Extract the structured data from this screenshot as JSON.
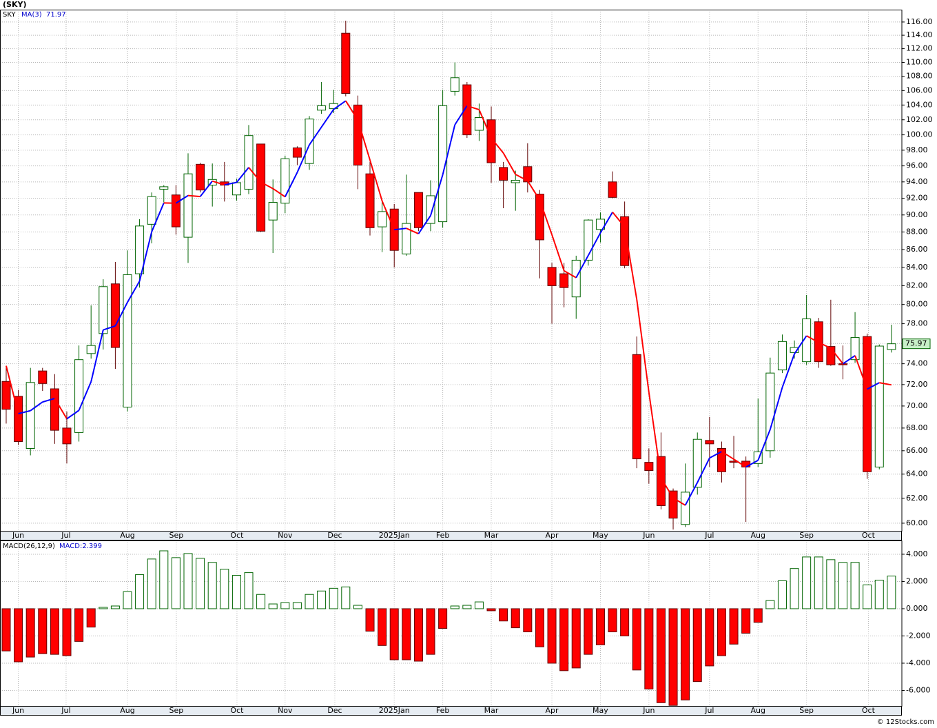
{
  "chart_data": [
    {
      "type": "candlestick",
      "title": "(SKY)",
      "name": "SKY",
      "log_scale": true,
      "grid": true,
      "up_color": "#006400",
      "down_color": "#ff0000",
      "open": [
        72.3,
        70.9,
        66.2,
        73.3,
        71.6,
        68.0,
        67.6,
        75.0,
        77.0,
        82.2,
        69.9,
        83.3,
        88.9,
        93.1,
        92.4,
        87.4,
        96.2,
        93.6,
        94.0,
        92.4,
        93.1,
        98.8,
        89.4,
        91.4,
        98.3,
        96.3,
        103.3,
        103.5,
        114.3,
        104.0,
        95.0,
        88.6,
        90.7,
        85.5,
        92.7,
        89.0,
        89.2,
        105.9,
        106.8,
        100.6,
        102.0,
        95.8,
        93.9,
        95.9,
        92.5,
        84.0,
        83.3,
        80.8,
        84.8,
        88.3,
        94.0,
        89.8,
        74.9,
        65.0,
        65.5,
        62.6,
        59.9,
        62.9,
        66.9,
        66.2,
        65.1,
        65.1,
        64.9,
        66.0,
        73.4,
        75.1,
        74.2,
        78.2,
        75.7,
        74.0,
        74.4,
        76.7,
        64.6,
        75.4
      ],
      "high": [
        73.8,
        71.5,
        73.6,
        73.6,
        73.0,
        69.5,
        75.8,
        79.9,
        82.7,
        84.6,
        85.9,
        89.5,
        92.7,
        93.6,
        93.6,
        97.6,
        96.4,
        96.3,
        96.5,
        94.4,
        101.3,
        98.8,
        94.3,
        97.3,
        98.5,
        102.5,
        107.2,
        106.1,
        116.2,
        105.3,
        96.5,
        91.6,
        91.3,
        94.9,
        92.7,
        94.2,
        106.1,
        110.0,
        107.2,
        104.2,
        103.8,
        96.5,
        95.4,
        98.9,
        93.0,
        84.5,
        84.5,
        85.3,
        89.5,
        90.3,
        95.3,
        91.6,
        76.7,
        66.2,
        67.6,
        62.8,
        64.9,
        67.6,
        69.0,
        66.8,
        67.3,
        65.5,
        70.7,
        74.6,
        76.9,
        76.3,
        81.0,
        78.6,
        80.5,
        75.8,
        79.2,
        77.0,
        75.9,
        77.9
      ],
      "low": [
        68.4,
        66.5,
        65.6,
        71.4,
        66.6,
        64.9,
        66.8,
        74.5,
        75.4,
        73.5,
        69.5,
        81.8,
        86.7,
        91.5,
        87.7,
        84.5,
        92.7,
        91.0,
        91.6,
        91.7,
        92.5,
        88.0,
        85.6,
        90.2,
        96.1,
        95.5,
        102.8,
        102.9,
        105.2,
        93.1,
        87.6,
        85.7,
        84.0,
        85.3,
        88.1,
        88.1,
        88.5,
        105.3,
        99.6,
        99.2,
        93.9,
        90.8,
        90.5,
        92.7,
        82.8,
        78.0,
        79.7,
        78.5,
        84.2,
        86.8,
        92.0,
        83.9,
        64.5,
        63.2,
        61.1,
        59.5,
        59.7,
        62.3,
        64.6,
        63.3,
        64.5,
        60.1,
        64.6,
        65.4,
        73.1,
        74.5,
        73.9,
        73.6,
        73.8,
        72.5,
        74.1,
        63.6,
        64.4,
        75.1
      ],
      "close": [
        69.7,
        66.8,
        72.2,
        72.1,
        67.8,
        66.6,
        74.4,
        75.8,
        81.9,
        75.6,
        83.2,
        88.7,
        92.2,
        93.4,
        88.6,
        95.0,
        93.0,
        94.3,
        93.6,
        93.9,
        99.9,
        88.1,
        91.5,
        96.9,
        97.1,
        102.1,
        103.9,
        104.2,
        105.6,
        96.1,
        88.5,
        90.4,
        85.9,
        89.0,
        88.5,
        92.3,
        103.9,
        107.8,
        100.0,
        102.3,
        96.4,
        94.2,
        94.2,
        94.0,
        87.1,
        82.0,
        81.8,
        84.8,
        89.4,
        89.5,
        92.1,
        84.2,
        65.3,
        64.3,
        61.4,
        60.4,
        62.5,
        67.0,
        66.6,
        64.2,
        65.0,
        64.6,
        65.9,
        73.1,
        76.2,
        75.6,
        78.5,
        74.2,
        73.9,
        73.9,
        76.6,
        64.2,
        75.74,
        75.97
      ],
      "ma": {
        "name": "MA(3)",
        "rise_color": "#0000ff",
        "fall_color": "#ff0000",
        "values": [
          73.8,
          69.3,
          69.57,
          70.37,
          70.7,
          68.83,
          69.6,
          72.27,
          77.37,
          77.77,
          80.23,
          82.5,
          88.03,
          91.43,
          91.4,
          92.33,
          92.2,
          94.1,
          93.63,
          93.93,
          95.8,
          93.97,
          93.17,
          92.17,
          95.17,
          98.7,
          101.03,
          103.4,
          104.57,
          101.97,
          96.73,
          91.67,
          88.27,
          88.43,
          87.8,
          89.93,
          94.9,
          101.33,
          103.9,
          103.37,
          99.57,
          97.63,
          94.93,
          94.13,
          91.77,
          87.7,
          83.63,
          82.87,
          85.33,
          87.9,
          90.33,
          88.6,
          80.53,
          71.27,
          63.67,
          62.03,
          61.43,
          63.3,
          65.37,
          65.93,
          65.27,
          64.6,
          65.17,
          67.87,
          71.73,
          74.97,
          76.77,
          76.1,
          75.53,
          74.0,
          74.8,
          71.57,
          72.18,
          71.97
        ]
      },
      "xlim": [
        -0.51,
        73.86
      ],
      "xticks": [
        {
          "value": 1.0,
          "label": "Jun"
        },
        {
          "value": 4.94,
          "label": "Jul"
        },
        {
          "value": 10.0,
          "label": "Aug"
        },
        {
          "value": 14.03,
          "label": "Sep"
        },
        {
          "value": 19.03,
          "label": "Oct"
        },
        {
          "value": 23.0,
          "label": "Nov"
        },
        {
          "value": 27.1,
          "label": "Dec"
        },
        {
          "value": 32.0,
          "label": "2025Jan"
        },
        {
          "value": 36.0,
          "label": "Feb"
        },
        {
          "value": 40.0,
          "label": "Mar"
        },
        {
          "value": 45.0,
          "label": "Apr"
        },
        {
          "value": 49.0,
          "label": "May"
        },
        {
          "value": 53.0,
          "label": "Jun"
        },
        {
          "value": 58.0,
          "label": "Jul"
        },
        {
          "value": 62.0,
          "label": "Aug"
        },
        {
          "value": 66.0,
          "label": "Sep"
        },
        {
          "value": 71.1,
          "label": "Oct"
        }
      ],
      "ylim": [
        59.4,
        117.9
      ],
      "yticks": [
        {
          "value": 60,
          "label": "60.00"
        },
        {
          "value": 62,
          "label": "62.00"
        },
        {
          "value": 64,
          "label": "64.00"
        },
        {
          "value": 66,
          "label": "66.00"
        },
        {
          "value": 68,
          "label": "68.00"
        },
        {
          "value": 70,
          "label": "70.00"
        },
        {
          "value": 72,
          "label": "72.00"
        },
        {
          "value": 74,
          "label": "74.00"
        },
        {
          "value": 76,
          "label": "76.00"
        },
        {
          "value": 78,
          "label": "78.00"
        },
        {
          "value": 80,
          "label": "80.00"
        },
        {
          "value": 82,
          "label": "82.00"
        },
        {
          "value": 84,
          "label": "84.00"
        },
        {
          "value": 86,
          "label": "86.00"
        },
        {
          "value": 88,
          "label": "88.00"
        },
        {
          "value": 90,
          "label": "90.00"
        },
        {
          "value": 92,
          "label": "92.00"
        },
        {
          "value": 94,
          "label": "94.00"
        },
        {
          "value": 96,
          "label": "96.00"
        },
        {
          "value": 98,
          "label": "98.00"
        },
        {
          "value": 100,
          "label": "100.00"
        },
        {
          "value": 102,
          "label": "102.00"
        },
        {
          "value": 104,
          "label": "104.00"
        },
        {
          "value": 106,
          "label": "106.00"
        },
        {
          "value": 108,
          "label": "108.00"
        },
        {
          "value": 110,
          "label": "110.00"
        },
        {
          "value": 112,
          "label": "112.00"
        },
        {
          "value": 114,
          "label": "114.00"
        },
        {
          "value": 116,
          "label": "116.00"
        }
      ]
    },
    {
      "type": "bar",
      "name": "MACD(26,12,9)",
      "value_label": "MACD:2.399",
      "grid": true,
      "pos_color": "#006400",
      "neg_color": "#ff0000",
      "values": [
        -3.1,
        -3.9,
        -3.55,
        -3.3,
        -3.35,
        -3.45,
        -2.4,
        -1.35,
        0.1,
        0.2,
        1.25,
        2.5,
        3.65,
        4.25,
        3.75,
        4.05,
        3.7,
        3.4,
        2.9,
        2.45,
        2.65,
        1.05,
        0.35,
        0.45,
        0.45,
        1.05,
        1.3,
        1.5,
        1.6,
        0.25,
        -1.65,
        -2.7,
        -3.75,
        -3.75,
        -3.85,
        -3.35,
        -1.45,
        0.2,
        0.25,
        0.5,
        -0.15,
        -0.9,
        -1.4,
        -1.7,
        -2.8,
        -4.0,
        -4.55,
        -4.35,
        -3.35,
        -2.65,
        -1.7,
        -2.0,
        -4.5,
        -5.9,
        -6.9,
        -7.1,
        -6.7,
        -5.35,
        -4.2,
        -3.45,
        -2.6,
        -1.8,
        -1.0,
        0.6,
        2.05,
        2.95,
        3.8,
        3.8,
        3.6,
        3.4,
        3.4,
        1.75,
        2.1,
        2.399
      ],
      "ylim": [
        -7.14,
        5.01
      ],
      "yticks": [
        {
          "value": -6,
          "label": "-6.000"
        },
        {
          "value": -4,
          "label": "-4.000"
        },
        {
          "value": -2,
          "label": "-2.000"
        },
        {
          "value": 0,
          "label": "0.000"
        },
        {
          "value": 2,
          "label": "2.000"
        },
        {
          "value": 4,
          "label": "4.000"
        }
      ]
    }
  ],
  "footer": "© 12Stocks.com"
}
